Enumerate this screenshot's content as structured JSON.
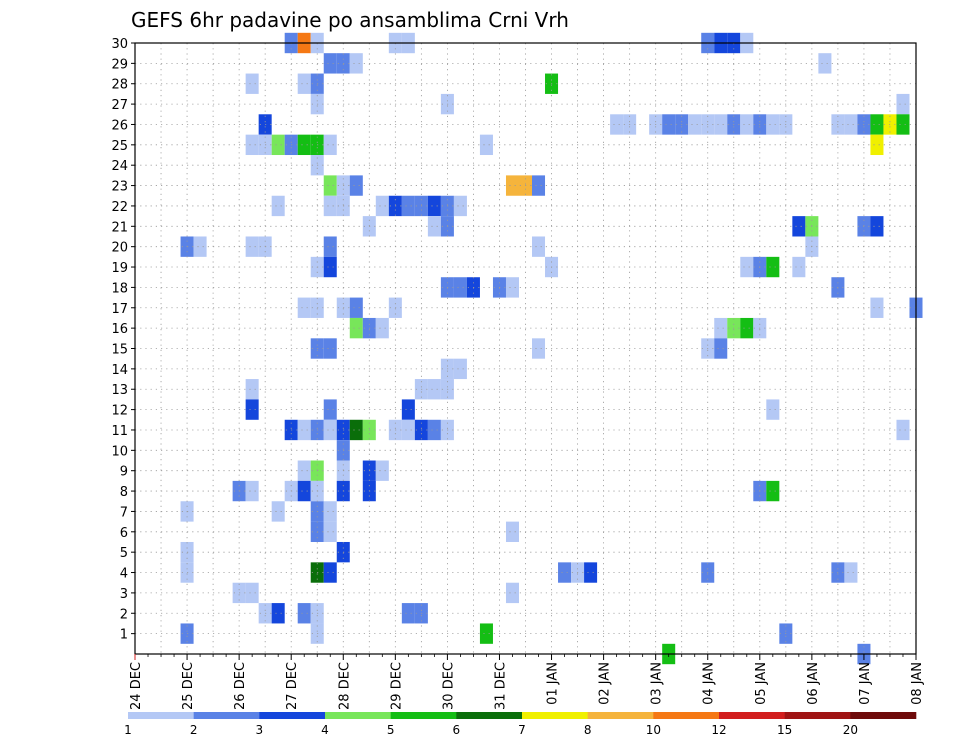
{
  "chart_data": {
    "type": "heatmap",
    "title": "GEFS 6hr padavine po ansamblima Crni Vrh",
    "xlabel": "",
    "ylabel": "",
    "x_tick_labels": [
      "24 DEC",
      "25 DEC",
      "26 DEC",
      "27 DEC",
      "28 DEC",
      "29 DEC",
      "30 DEC",
      "31 DEC",
      "01 JAN",
      "02 JAN",
      "03 JAN",
      "04 JAN",
      "05 JAN",
      "06 JAN",
      "07 JAN",
      "08 JAN"
    ],
    "y_tick_labels": [
      "1",
      "2",
      "3",
      "4",
      "5",
      "6",
      "7",
      "8",
      "9",
      "10",
      "11",
      "12",
      "13",
      "14",
      "15",
      "16",
      "17",
      "18",
      "19",
      "20",
      "21",
      "22",
      "23",
      "24",
      "25",
      "26",
      "27",
      "28",
      "29",
      "30"
    ],
    "x_range_days": [
      0,
      15
    ],
    "y_range": [
      0,
      30
    ],
    "time_step_hours": 6,
    "grid": true,
    "legend": {
      "placement": "bottom",
      "thresholds": [
        "1",
        "2",
        "3",
        "4",
        "5",
        "6",
        "7",
        "8",
        "10",
        "12",
        "15",
        "20"
      ],
      "colors": [
        "#b4c8f5",
        "#5a82e6",
        "#1446dc",
        "#78e65a",
        "#14be14",
        "#0a6e0a",
        "#f0f000",
        "#f5b43c",
        "#f57814",
        "#d21e1e",
        "#a01414",
        "#6e0a0a"
      ]
    },
    "cells": [
      {
        "day": 3.0,
        "member": 30,
        "level": 2
      },
      {
        "day": 3.25,
        "member": 30,
        "level": 9
      },
      {
        "day": 3.5,
        "member": 30,
        "level": 1
      },
      {
        "day": 5.0,
        "member": 30,
        "level": 1
      },
      {
        "day": 5.25,
        "member": 30,
        "level": 1
      },
      {
        "day": 11.0,
        "member": 30,
        "level": 2
      },
      {
        "day": 11.25,
        "member": 30,
        "level": 3
      },
      {
        "day": 11.5,
        "member": 30,
        "level": 3
      },
      {
        "day": 11.75,
        "member": 30,
        "level": 1
      },
      {
        "day": 3.75,
        "member": 29,
        "level": 2
      },
      {
        "day": 4.0,
        "member": 29,
        "level": 2
      },
      {
        "day": 4.25,
        "member": 29,
        "level": 1
      },
      {
        "day": 13.25,
        "member": 29,
        "level": 1
      },
      {
        "day": 2.25,
        "member": 28,
        "level": 1
      },
      {
        "day": 3.25,
        "member": 28,
        "level": 1
      },
      {
        "day": 3.5,
        "member": 28,
        "level": 2
      },
      {
        "day": 8.0,
        "member": 28,
        "level": 5
      },
      {
        "day": 3.5,
        "member": 27,
        "level": 1
      },
      {
        "day": 6.0,
        "member": 27,
        "level": 1
      },
      {
        "day": 14.75,
        "member": 27,
        "level": 1
      },
      {
        "day": 2.5,
        "member": 26,
        "level": 3
      },
      {
        "day": 9.25,
        "member": 26,
        "level": 1
      },
      {
        "day": 9.5,
        "member": 26,
        "level": 1
      },
      {
        "day": 10.0,
        "member": 26,
        "level": 1
      },
      {
        "day": 10.25,
        "member": 26,
        "level": 2
      },
      {
        "day": 10.5,
        "member": 26,
        "level": 2
      },
      {
        "day": 10.75,
        "member": 26,
        "level": 1
      },
      {
        "day": 11.0,
        "member": 26,
        "level": 1
      },
      {
        "day": 11.25,
        "member": 26,
        "level": 1
      },
      {
        "day": 11.5,
        "member": 26,
        "level": 2
      },
      {
        "day": 11.75,
        "member": 26,
        "level": 1
      },
      {
        "day": 12.0,
        "member": 26,
        "level": 2
      },
      {
        "day": 12.25,
        "member": 26,
        "level": 1
      },
      {
        "day": 12.5,
        "member": 26,
        "level": 1
      },
      {
        "day": 13.5,
        "member": 26,
        "level": 1
      },
      {
        "day": 13.75,
        "member": 26,
        "level": 1
      },
      {
        "day": 14.0,
        "member": 26,
        "level": 2
      },
      {
        "day": 14.25,
        "member": 26,
        "level": 5
      },
      {
        "day": 14.5,
        "member": 26,
        "level": 7
      },
      {
        "day": 14.75,
        "member": 26,
        "level": 5
      },
      {
        "day": 2.25,
        "member": 25,
        "level": 1
      },
      {
        "day": 2.5,
        "member": 25,
        "level": 1
      },
      {
        "day": 2.75,
        "member": 25,
        "level": 4
      },
      {
        "day": 3.0,
        "member": 25,
        "level": 2
      },
      {
        "day": 3.25,
        "member": 25,
        "level": 5
      },
      {
        "day": 3.5,
        "member": 25,
        "level": 5
      },
      {
        "day": 3.75,
        "member": 25,
        "level": 1
      },
      {
        "day": 6.75,
        "member": 25,
        "level": 1
      },
      {
        "day": 14.25,
        "member": 25,
        "level": 7
      },
      {
        "day": 3.5,
        "member": 24,
        "level": 1
      },
      {
        "day": 3.75,
        "member": 23,
        "level": 4
      },
      {
        "day": 4.0,
        "member": 23,
        "level": 1
      },
      {
        "day": 4.25,
        "member": 23,
        "level": 2
      },
      {
        "day": 7.25,
        "member": 23,
        "level": 8
      },
      {
        "day": 7.5,
        "member": 23,
        "level": 8
      },
      {
        "day": 7.75,
        "member": 23,
        "level": 2
      },
      {
        "day": 2.75,
        "member": 22,
        "level": 1
      },
      {
        "day": 3.75,
        "member": 22,
        "level": 1
      },
      {
        "day": 4.0,
        "member": 22,
        "level": 1
      },
      {
        "day": 4.75,
        "member": 22,
        "level": 1
      },
      {
        "day": 5.0,
        "member": 22,
        "level": 3
      },
      {
        "day": 5.25,
        "member": 22,
        "level": 2
      },
      {
        "day": 5.5,
        "member": 22,
        "level": 2
      },
      {
        "day": 5.75,
        "member": 22,
        "level": 3
      },
      {
        "day": 6.0,
        "member": 22,
        "level": 2
      },
      {
        "day": 6.25,
        "member": 22,
        "level": 1
      },
      {
        "day": 4.5,
        "member": 21,
        "level": 1
      },
      {
        "day": 5.75,
        "member": 21,
        "level": 1
      },
      {
        "day": 6.0,
        "member": 21,
        "level": 2
      },
      {
        "day": 12.75,
        "member": 21,
        "level": 3
      },
      {
        "day": 13.0,
        "member": 21,
        "level": 4
      },
      {
        "day": 14.0,
        "member": 21,
        "level": 2
      },
      {
        "day": 14.25,
        "member": 21,
        "level": 3
      },
      {
        "day": 1.0,
        "member": 20,
        "level": 2
      },
      {
        "day": 1.25,
        "member": 20,
        "level": 1
      },
      {
        "day": 2.25,
        "member": 20,
        "level": 1
      },
      {
        "day": 2.5,
        "member": 20,
        "level": 1
      },
      {
        "day": 3.75,
        "member": 20,
        "level": 2
      },
      {
        "day": 7.75,
        "member": 20,
        "level": 1
      },
      {
        "day": 13.0,
        "member": 20,
        "level": 1
      },
      {
        "day": 3.5,
        "member": 19,
        "level": 1
      },
      {
        "day": 3.75,
        "member": 19,
        "level": 3
      },
      {
        "day": 8.0,
        "member": 19,
        "level": 1
      },
      {
        "day": 11.75,
        "member": 19,
        "level": 1
      },
      {
        "day": 12.0,
        "member": 19,
        "level": 2
      },
      {
        "day": 12.25,
        "member": 19,
        "level": 5
      },
      {
        "day": 12.75,
        "member": 19,
        "level": 1
      },
      {
        "day": 6.0,
        "member": 18,
        "level": 2
      },
      {
        "day": 6.25,
        "member": 18,
        "level": 2
      },
      {
        "day": 6.5,
        "member": 18,
        "level": 3
      },
      {
        "day": 7.0,
        "member": 18,
        "level": 2
      },
      {
        "day": 7.25,
        "member": 18,
        "level": 1
      },
      {
        "day": 13.5,
        "member": 18,
        "level": 2
      },
      {
        "day": 3.25,
        "member": 17,
        "level": 1
      },
      {
        "day": 3.5,
        "member": 17,
        "level": 1
      },
      {
        "day": 4.0,
        "member": 17,
        "level": 1
      },
      {
        "day": 4.25,
        "member": 17,
        "level": 2
      },
      {
        "day": 5.0,
        "member": 17,
        "level": 1
      },
      {
        "day": 14.25,
        "member": 17,
        "level": 1
      },
      {
        "day": 15.0,
        "member": 17,
        "level": 2
      },
      {
        "day": 4.25,
        "member": 16,
        "level": 4
      },
      {
        "day": 4.5,
        "member": 16,
        "level": 2
      },
      {
        "day": 4.75,
        "member": 16,
        "level": 1
      },
      {
        "day": 11.25,
        "member": 16,
        "level": 1
      },
      {
        "day": 11.5,
        "member": 16,
        "level": 4
      },
      {
        "day": 11.75,
        "member": 16,
        "level": 5
      },
      {
        "day": 12.0,
        "member": 16,
        "level": 1
      },
      {
        "day": 3.5,
        "member": 15,
        "level": 2
      },
      {
        "day": 3.75,
        "member": 15,
        "level": 2
      },
      {
        "day": 7.75,
        "member": 15,
        "level": 1
      },
      {
        "day": 11.0,
        "member": 15,
        "level": 1
      },
      {
        "day": 11.25,
        "member": 15,
        "level": 2
      },
      {
        "day": 6.0,
        "member": 14,
        "level": 1
      },
      {
        "day": 6.25,
        "member": 14,
        "level": 1
      },
      {
        "day": 2.25,
        "member": 13,
        "level": 1
      },
      {
        "day": 5.5,
        "member": 13,
        "level": 1
      },
      {
        "day": 5.75,
        "member": 13,
        "level": 1
      },
      {
        "day": 6.0,
        "member": 13,
        "level": 1
      },
      {
        "day": 2.25,
        "member": 12,
        "level": 3
      },
      {
        "day": 3.75,
        "member": 12,
        "level": 2
      },
      {
        "day": 5.25,
        "member": 12,
        "level": 3
      },
      {
        "day": 12.25,
        "member": 12,
        "level": 1
      },
      {
        "day": 3.0,
        "member": 11,
        "level": 3
      },
      {
        "day": 3.25,
        "member": 11,
        "level": 1
      },
      {
        "day": 3.5,
        "member": 11,
        "level": 2
      },
      {
        "day": 3.75,
        "member": 11,
        "level": 1
      },
      {
        "day": 4.0,
        "member": 11,
        "level": 3
      },
      {
        "day": 4.25,
        "member": 11,
        "level": 6
      },
      {
        "day": 4.5,
        "member": 11,
        "level": 4
      },
      {
        "day": 5.0,
        "member": 11,
        "level": 1
      },
      {
        "day": 5.25,
        "member": 11,
        "level": 1
      },
      {
        "day": 5.5,
        "member": 11,
        "level": 3
      },
      {
        "day": 5.75,
        "member": 11,
        "level": 2
      },
      {
        "day": 6.0,
        "member": 11,
        "level": 1
      },
      {
        "day": 14.75,
        "member": 11,
        "level": 1
      },
      {
        "day": 4.0,
        "member": 10,
        "level": 2
      },
      {
        "day": 3.25,
        "member": 9,
        "level": 1
      },
      {
        "day": 3.5,
        "member": 9,
        "level": 4
      },
      {
        "day": 4.0,
        "member": 9,
        "level": 1
      },
      {
        "day": 4.5,
        "member": 9,
        "level": 3
      },
      {
        "day": 4.75,
        "member": 9,
        "level": 1
      },
      {
        "day": 2.0,
        "member": 8,
        "level": 2
      },
      {
        "day": 2.25,
        "member": 8,
        "level": 1
      },
      {
        "day": 3.0,
        "member": 8,
        "level": 1
      },
      {
        "day": 3.25,
        "member": 8,
        "level": 3
      },
      {
        "day": 3.5,
        "member": 8,
        "level": 1
      },
      {
        "day": 4.0,
        "member": 8,
        "level": 3
      },
      {
        "day": 4.5,
        "member": 8,
        "level": 3
      },
      {
        "day": 12.0,
        "member": 8,
        "level": 2
      },
      {
        "day": 12.25,
        "member": 8,
        "level": 5
      },
      {
        "day": 1.0,
        "member": 7,
        "level": 1
      },
      {
        "day": 2.75,
        "member": 7,
        "level": 1
      },
      {
        "day": 3.5,
        "member": 7,
        "level": 2
      },
      {
        "day": 3.75,
        "member": 7,
        "level": 1
      },
      {
        "day": 3.5,
        "member": 6,
        "level": 2
      },
      {
        "day": 3.75,
        "member": 6,
        "level": 1
      },
      {
        "day": 7.25,
        "member": 6,
        "level": 1
      },
      {
        "day": 1.0,
        "member": 5,
        "level": 1
      },
      {
        "day": 4.0,
        "member": 5,
        "level": 3
      },
      {
        "day": 1.0,
        "member": 4,
        "level": 1
      },
      {
        "day": 3.5,
        "member": 4,
        "level": 6
      },
      {
        "day": 3.75,
        "member": 4,
        "level": 3
      },
      {
        "day": 8.25,
        "member": 4,
        "level": 2
      },
      {
        "day": 8.5,
        "member": 4,
        "level": 1
      },
      {
        "day": 8.75,
        "member": 4,
        "level": 3
      },
      {
        "day": 11.0,
        "member": 4,
        "level": 2
      },
      {
        "day": 13.5,
        "member": 4,
        "level": 2
      },
      {
        "day": 13.75,
        "member": 4,
        "level": 1
      },
      {
        "day": 2.0,
        "member": 3,
        "level": 1
      },
      {
        "day": 2.25,
        "member": 3,
        "level": 1
      },
      {
        "day": 7.25,
        "member": 3,
        "level": 1
      },
      {
        "day": 2.5,
        "member": 2,
        "level": 1
      },
      {
        "day": 2.75,
        "member": 2,
        "level": 3
      },
      {
        "day": 3.25,
        "member": 2,
        "level": 2
      },
      {
        "day": 3.5,
        "member": 2,
        "level": 1
      },
      {
        "day": 5.25,
        "member": 2,
        "level": 2
      },
      {
        "day": 5.5,
        "member": 2,
        "level": 2
      },
      {
        "day": 1.0,
        "member": 1,
        "level": 2
      },
      {
        "day": 3.5,
        "member": 1,
        "level": 1
      },
      {
        "day": 6.75,
        "member": 1,
        "level": 5
      },
      {
        "day": 12.5,
        "member": 1,
        "level": 2
      },
      {
        "day": 10.25,
        "member": 0,
        "level": 5
      },
      {
        "day": 14.0,
        "member": 0,
        "level": 2
      }
    ]
  }
}
